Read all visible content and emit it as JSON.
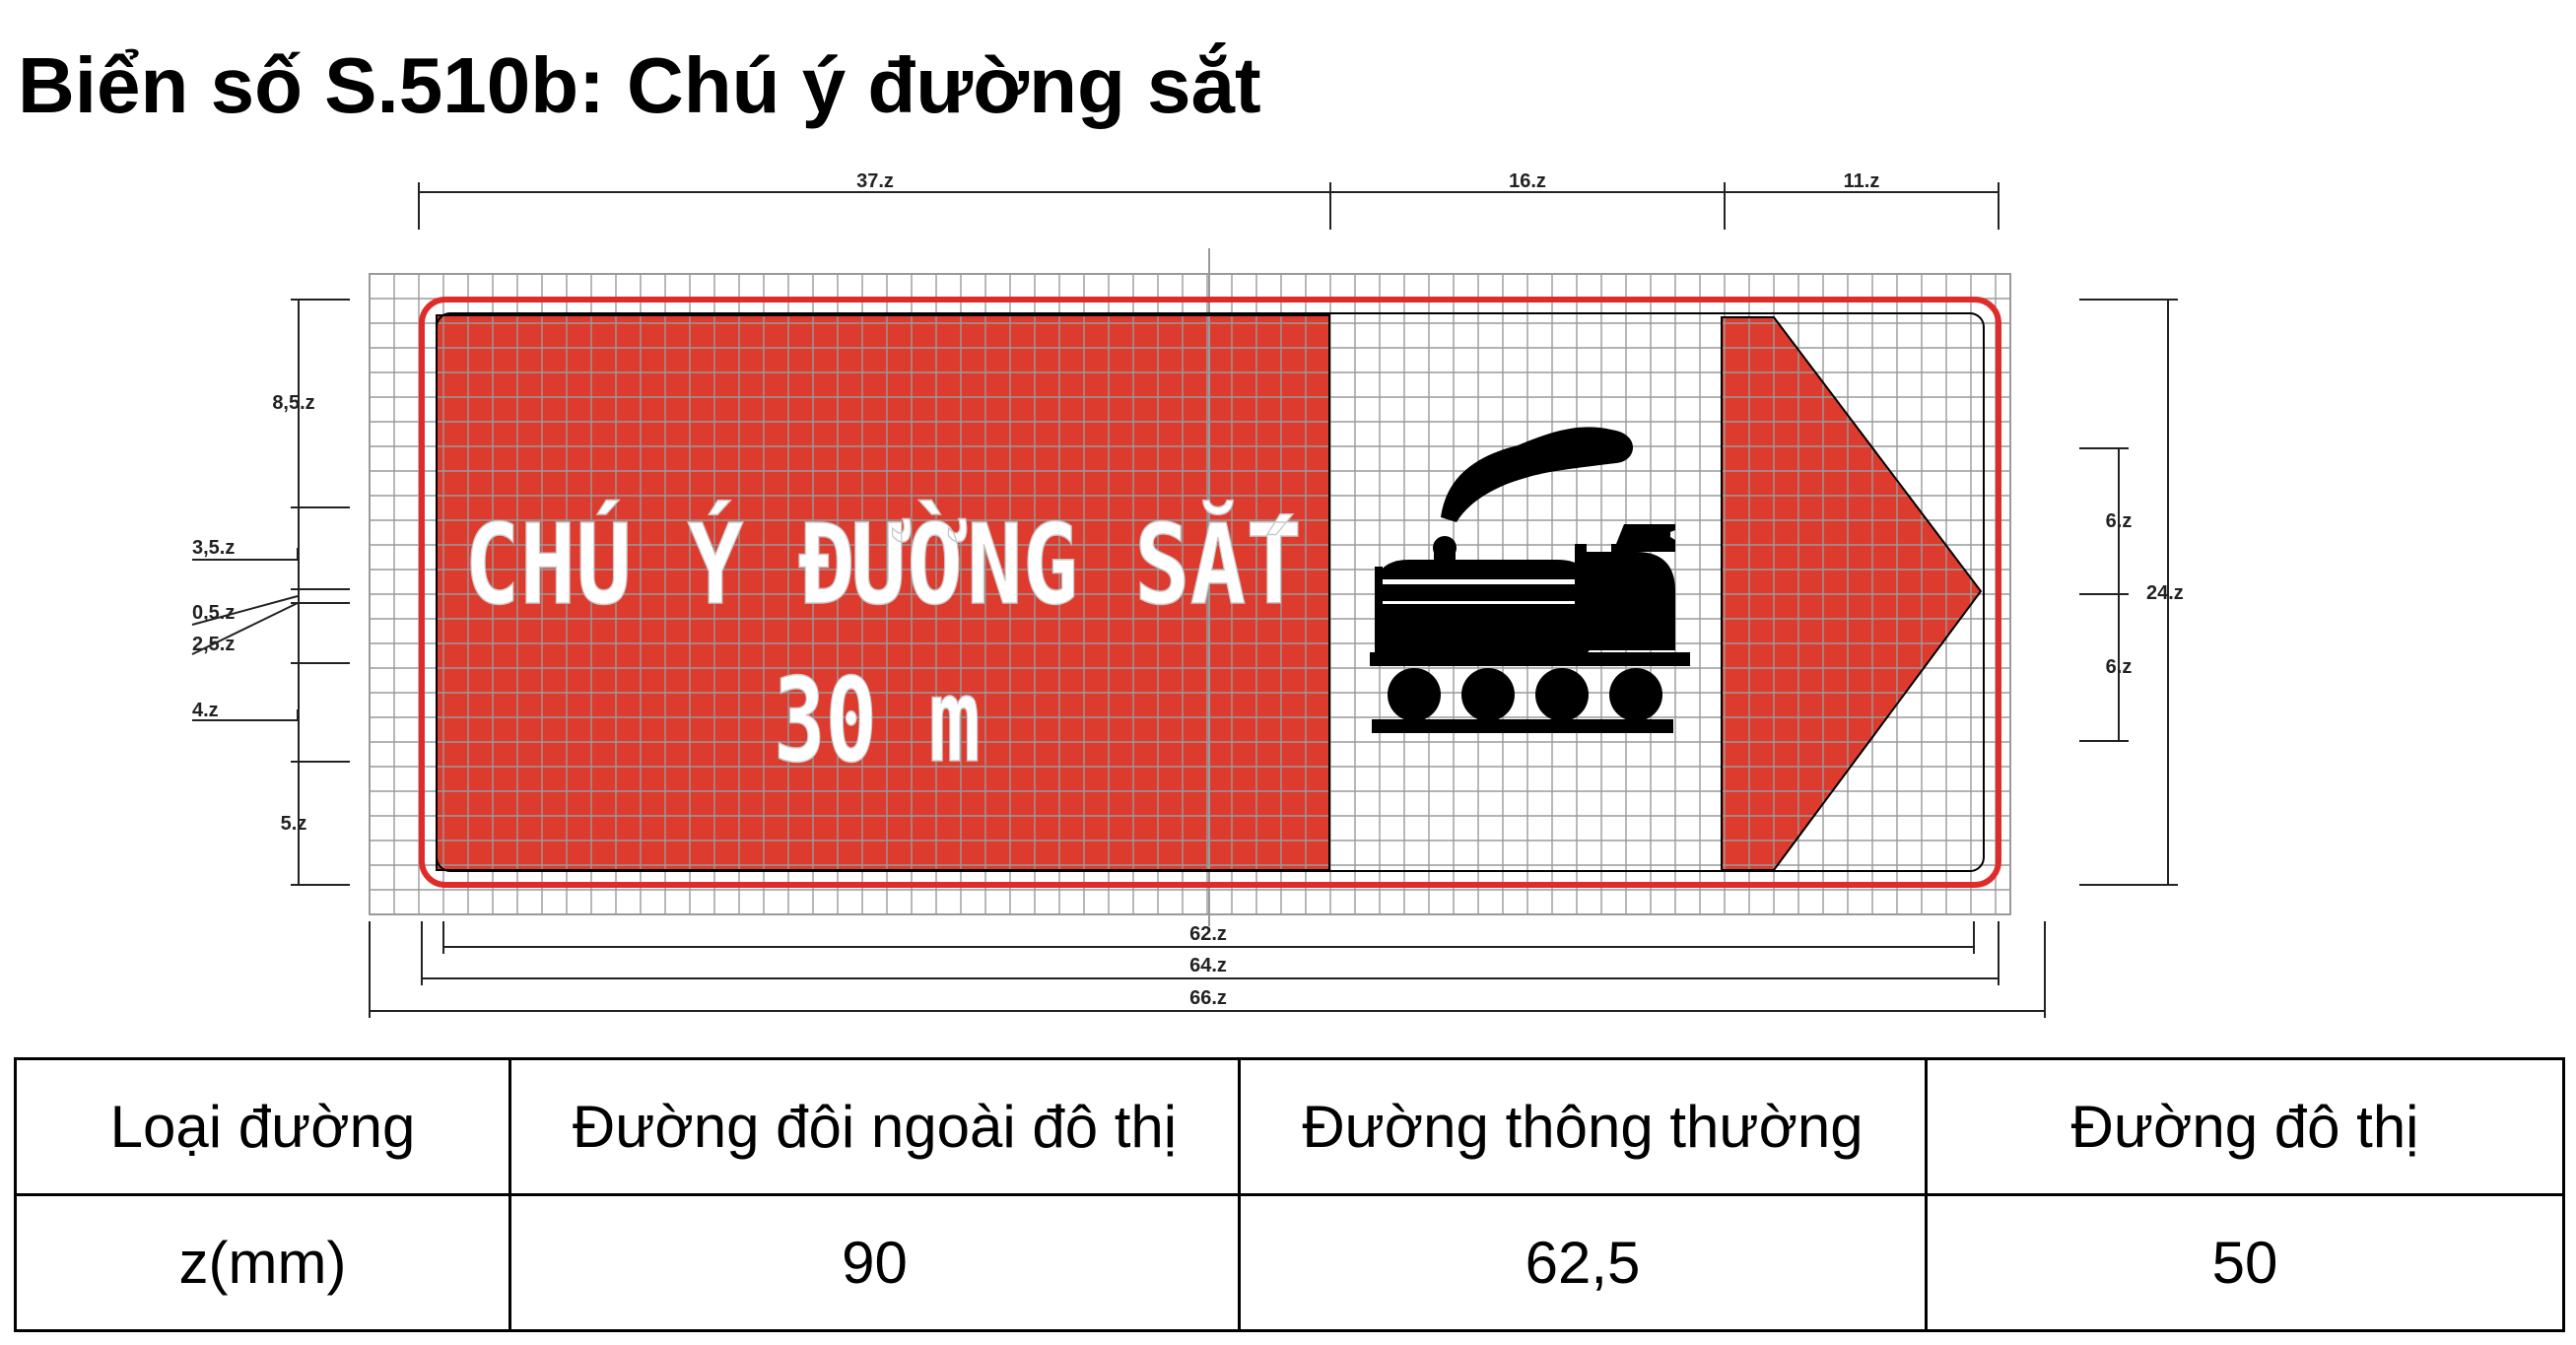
{
  "title": "Biển số S.510b: Chú ý đường sắt",
  "sign": {
    "line1": "CHÚ Ý ĐƯỜNG SẮT",
    "line2": "30 m",
    "colors": {
      "red": "#dd3b2e",
      "grid": "#9a9a9a",
      "border": "#e02b2b",
      "symbol": "#000000"
    },
    "symbol": "train-icon",
    "arrow": "arrow-right-icon"
  },
  "dimensions": {
    "top": [
      "37.z",
      "16.z",
      "11.z"
    ],
    "left": [
      "8,5.z",
      "3,5.z",
      "0,5.z",
      "2,5.z",
      "4.z",
      "5.z"
    ],
    "right_small": [
      "6.z",
      "6.z"
    ],
    "right_total": "24.z",
    "bottom": [
      "62.z",
      "64.z",
      "66.z"
    ]
  },
  "table": {
    "headers": [
      "Loại đường",
      "Đường đôi ngoài đô thị",
      "Đường thông thường",
      "Đường đô thị"
    ],
    "row": [
      "z(mm)",
      "90",
      "62,5",
      "50"
    ]
  }
}
